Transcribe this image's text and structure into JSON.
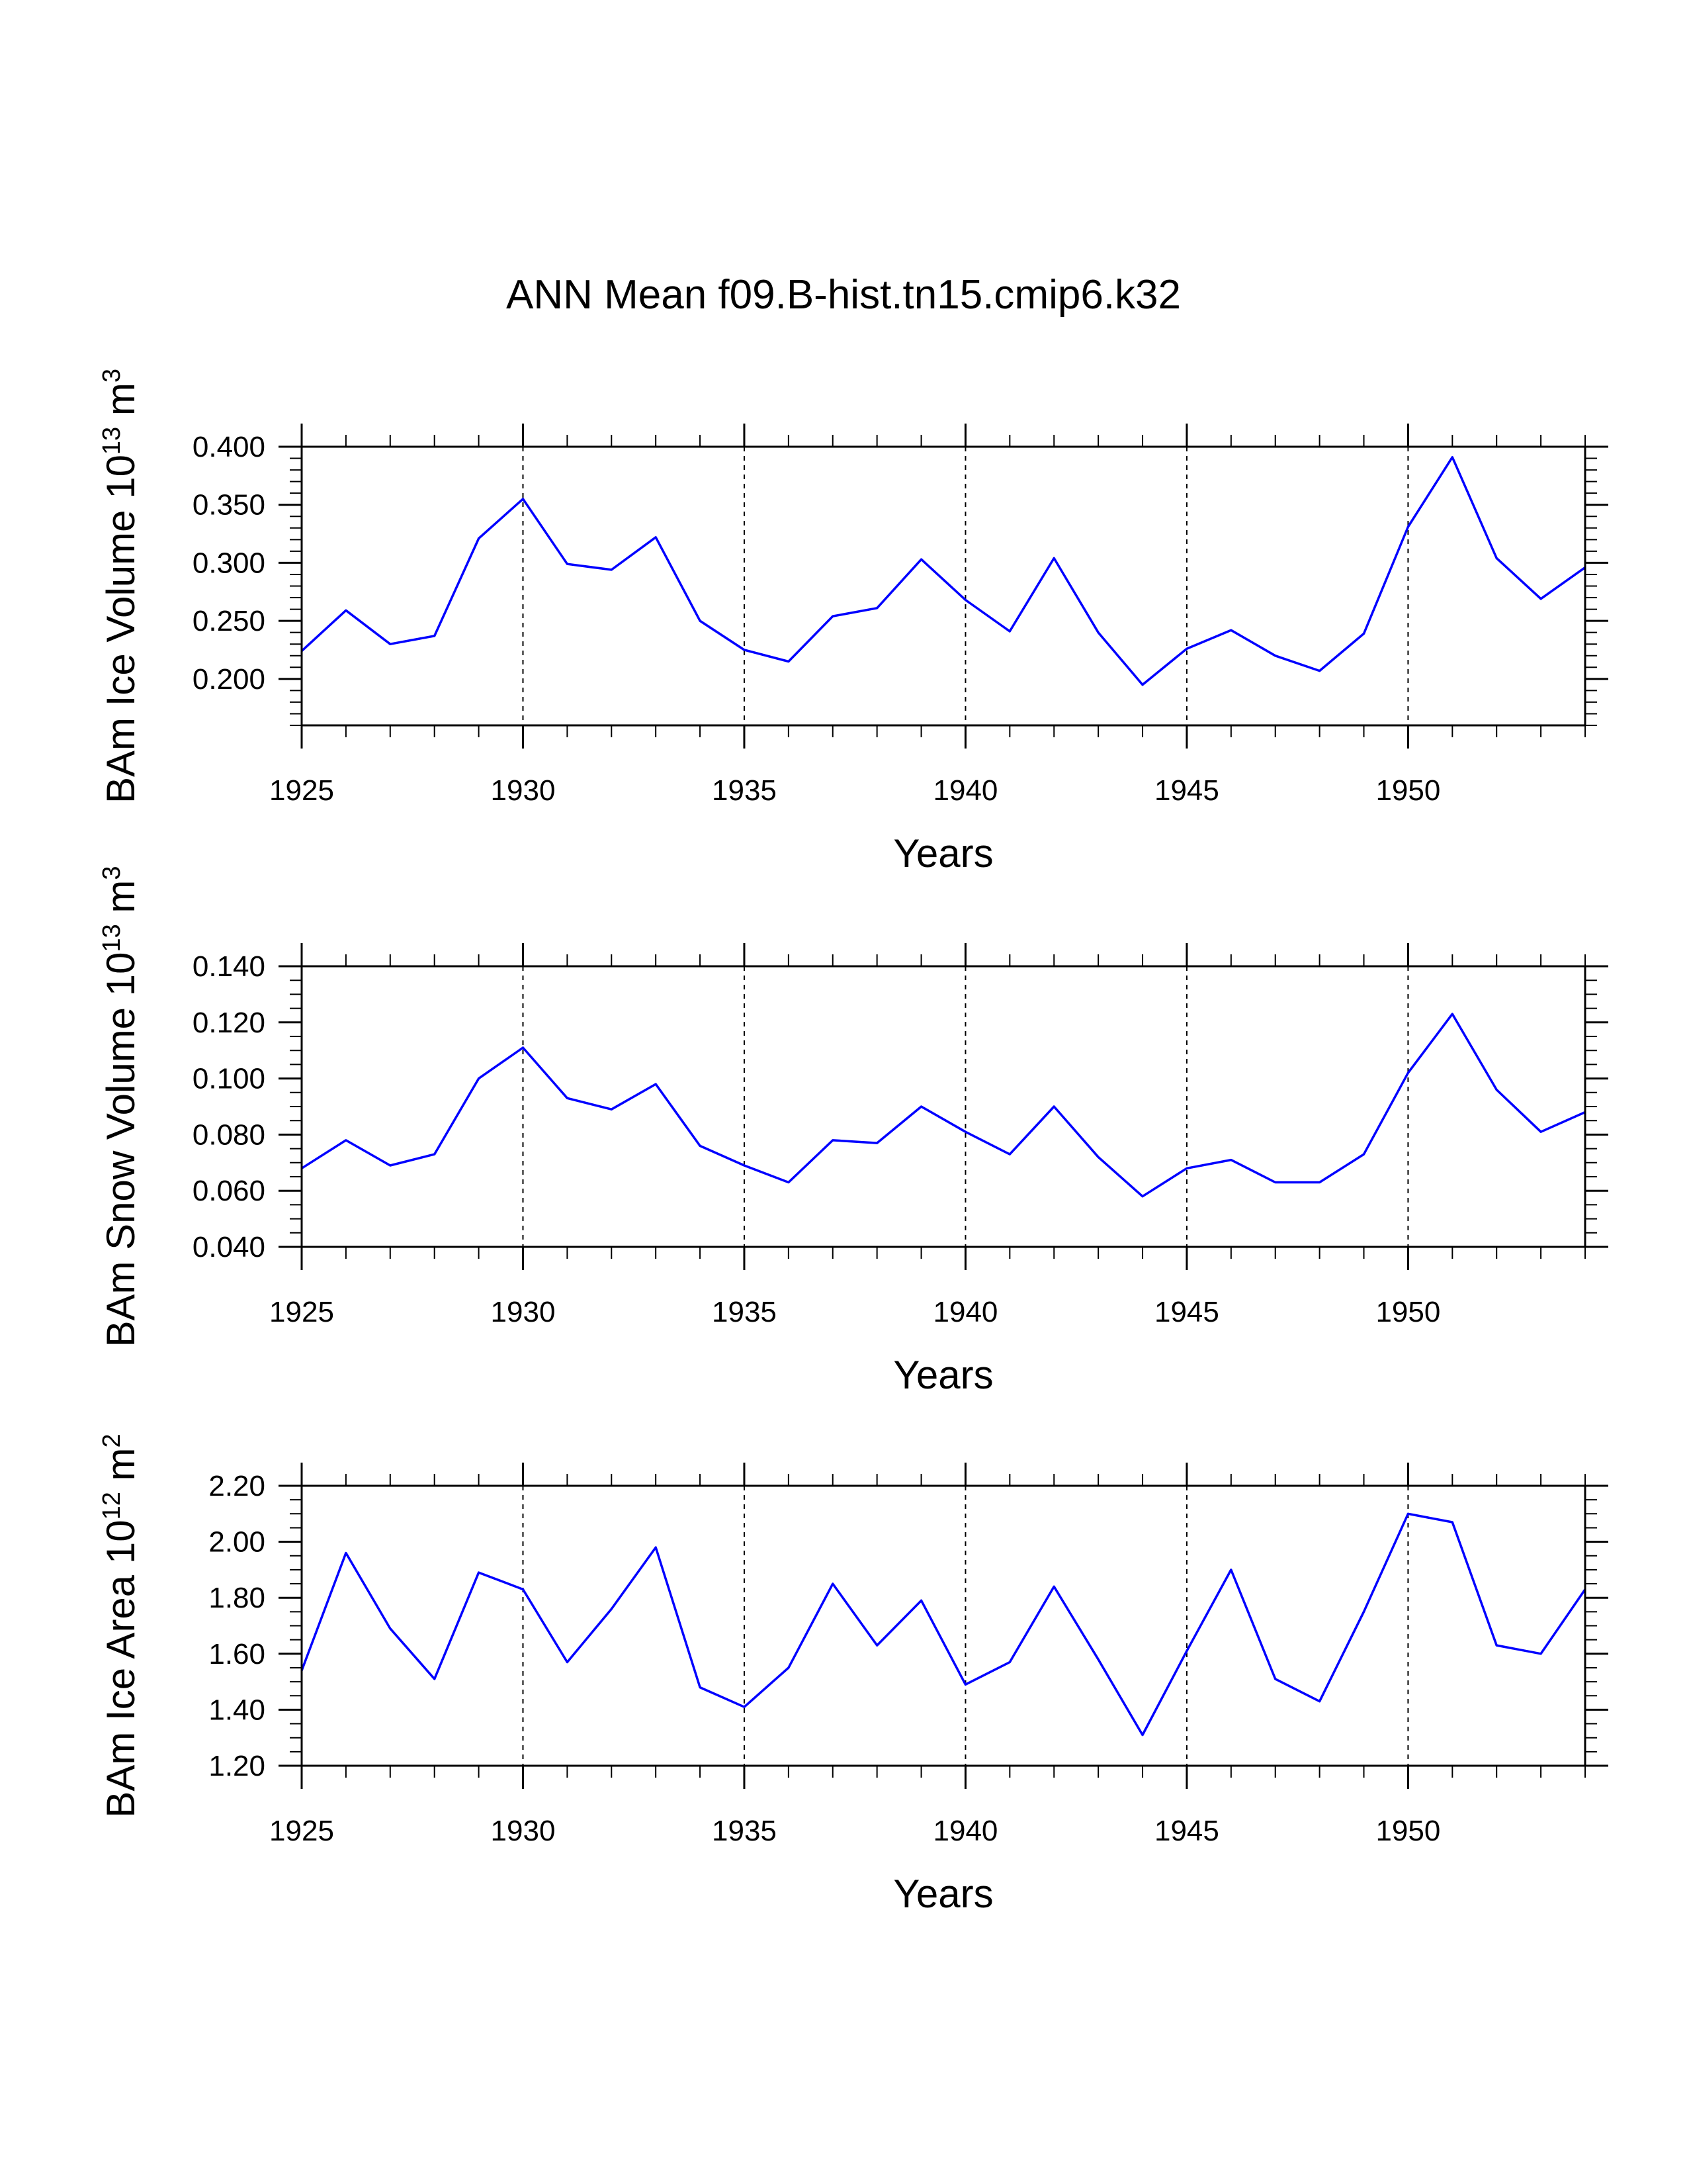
{
  "chart_data": [
    {
      "type": "line",
      "title": "ANN Mean f09.B-hist.tn15.cmip6.k32",
      "ylabel": "BAm Ice Volume 10",
      "ylabel_exp": "13",
      "ylabel_unit": " m",
      "ylabel_unit_exp": "3",
      "xlabel": "Years",
      "xlim": [
        1925,
        1954
      ],
      "ylim": [
        0.16,
        0.4
      ],
      "x_major_ticks": [
        1925,
        1930,
        1935,
        1940,
        1945,
        1950
      ],
      "x_tick_labels": [
        "1925",
        "1930",
        "1935",
        "1940",
        "1945",
        "1950"
      ],
      "y_major_ticks": [
        0.2,
        0.25,
        0.3,
        0.35,
        0.4
      ],
      "y_tick_labels": [
        "0.200",
        "0.250",
        "0.300",
        "0.350",
        "0.400"
      ],
      "y_minor_step": 0.01,
      "reference_lines_x": [
        1930,
        1935,
        1940,
        1945,
        1950
      ],
      "series": [
        {
          "name": "BAm Ice Volume",
          "color": "#0000ff",
          "x": [
            1925,
            1926,
            1927,
            1928,
            1929,
            1930,
            1931,
            1932,
            1933,
            1934,
            1935,
            1936,
            1937,
            1938,
            1939,
            1940,
            1941,
            1942,
            1943,
            1944,
            1945,
            1946,
            1947,
            1948,
            1949,
            1950,
            1951,
            1952,
            1953,
            1954
          ],
          "values": [
            0.224,
            0.259,
            0.23,
            0.237,
            0.321,
            0.355,
            0.299,
            0.294,
            0.322,
            0.25,
            0.225,
            0.215,
            0.254,
            0.261,
            0.303,
            0.268,
            0.241,
            0.304,
            0.24,
            0.195,
            0.226,
            0.242,
            0.22,
            0.207,
            0.239,
            0.331,
            0.391,
            0.304,
            0.269,
            0.296
          ]
        }
      ]
    },
    {
      "type": "line",
      "ylabel": "BAm Snow Volume 10",
      "ylabel_exp": "13",
      "ylabel_unit": " m",
      "ylabel_unit_exp": "3",
      "xlabel": "Years",
      "xlim": [
        1925,
        1954
      ],
      "ylim": [
        0.04,
        0.14
      ],
      "x_major_ticks": [
        1925,
        1930,
        1935,
        1940,
        1945,
        1950
      ],
      "x_tick_labels": [
        "1925",
        "1930",
        "1935",
        "1940",
        "1945",
        "1950"
      ],
      "y_major_ticks": [
        0.04,
        0.06,
        0.08,
        0.1,
        0.12,
        0.14
      ],
      "y_tick_labels": [
        "0.040",
        "0.060",
        "0.080",
        "0.100",
        "0.120",
        "0.140"
      ],
      "y_minor_step": 0.005,
      "reference_lines_x": [
        1930,
        1935,
        1940,
        1945,
        1950
      ],
      "series": [
        {
          "name": "BAm Snow Volume",
          "color": "#0000ff",
          "x": [
            1925,
            1926,
            1927,
            1928,
            1929,
            1930,
            1931,
            1932,
            1933,
            1934,
            1935,
            1936,
            1937,
            1938,
            1939,
            1940,
            1941,
            1942,
            1943,
            1944,
            1945,
            1946,
            1947,
            1948,
            1949,
            1950,
            1951,
            1952,
            1953,
            1954
          ],
          "values": [
            0.068,
            0.078,
            0.069,
            0.073,
            0.1,
            0.111,
            0.093,
            0.089,
            0.098,
            0.076,
            0.069,
            0.063,
            0.078,
            0.077,
            0.09,
            0.081,
            0.073,
            0.09,
            0.072,
            0.058,
            0.068,
            0.071,
            0.063,
            0.063,
            0.073,
            0.102,
            0.123,
            0.096,
            0.081,
            0.088
          ]
        }
      ]
    },
    {
      "type": "line",
      "ylabel": "BAm Ice Area 10",
      "ylabel_exp": "12",
      "ylabel_unit": " m",
      "ylabel_unit_exp": "2",
      "xlabel": "Years",
      "xlim": [
        1925,
        1954
      ],
      "ylim": [
        1.2,
        2.2
      ],
      "x_major_ticks": [
        1925,
        1930,
        1935,
        1940,
        1945,
        1950
      ],
      "x_tick_labels": [
        "1925",
        "1930",
        "1935",
        "1940",
        "1945",
        "1950"
      ],
      "y_major_ticks": [
        1.2,
        1.4,
        1.6,
        1.8,
        2.0,
        2.2
      ],
      "y_tick_labels": [
        "1.20",
        "1.40",
        "1.60",
        "1.80",
        "2.00",
        "2.20"
      ],
      "y_minor_step": 0.05,
      "reference_lines_x": [
        1930,
        1935,
        1940,
        1945,
        1950
      ],
      "series": [
        {
          "name": "BAm Ice Area",
          "color": "#0000ff",
          "x": [
            1925,
            1926,
            1927,
            1928,
            1929,
            1930,
            1931,
            1932,
            1933,
            1934,
            1935,
            1936,
            1937,
            1938,
            1939,
            1940,
            1941,
            1942,
            1943,
            1944,
            1945,
            1946,
            1947,
            1948,
            1949,
            1950,
            1951,
            1952,
            1953,
            1954
          ],
          "values": [
            1.54,
            1.96,
            1.69,
            1.51,
            1.89,
            1.83,
            1.57,
            1.76,
            1.98,
            1.48,
            1.41,
            1.55,
            1.85,
            1.63,
            1.79,
            1.49,
            1.57,
            1.84,
            1.58,
            1.31,
            1.61,
            1.9,
            1.51,
            1.43,
            1.75,
            2.1,
            2.07,
            1.63,
            1.6,
            1.83
          ]
        }
      ]
    }
  ]
}
